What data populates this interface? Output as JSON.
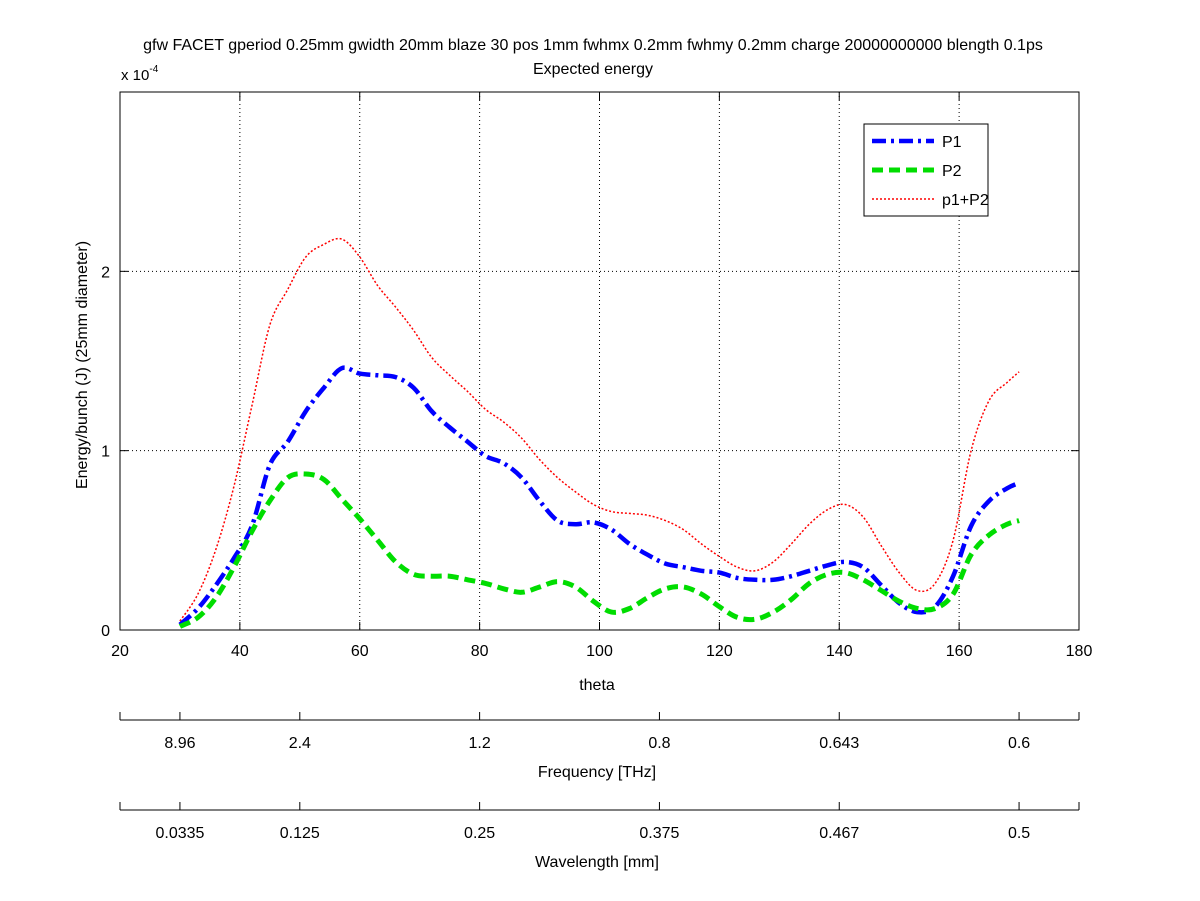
{
  "chart_data": {
    "type": "line",
    "title": "gfw FACET gperiod 0.25mm gwidth 20mm blaze 30 pos 1mm fwhmx 0.2mm fwhmy 0.2mm charge 20000000000 blength 0.1ps",
    "subtitle": "Expected energy",
    "xlabel": "theta",
    "ylabel": "Energy/bunch (J) (25mm diameter)",
    "y_exponent_base": "x 10",
    "y_exponent_power": "-4",
    "xlim": [
      20,
      180
    ],
    "ylim": [
      0,
      3
    ],
    "x_ticks": [
      20,
      40,
      60,
      80,
      100,
      120,
      140,
      160,
      180
    ],
    "x_tick_labels": [
      "20",
      "40",
      "60",
      "80",
      "100",
      "120",
      "140",
      "160",
      "180"
    ],
    "y_ticks": [
      0,
      1,
      2
    ],
    "y_tick_labels": [
      "0",
      "1",
      "2"
    ],
    "grid": true,
    "legend_position": "top-right",
    "x": [
      30,
      33,
      36,
      39,
      42,
      45,
      48,
      51,
      54,
      57,
      60,
      63,
      66,
      69,
      72,
      75,
      78,
      81,
      84,
      87,
      90,
      93,
      96,
      99,
      102,
      105,
      108,
      111,
      114,
      117,
      120,
      123,
      126,
      129,
      132,
      135,
      138,
      141,
      144,
      147,
      150,
      153,
      156,
      159,
      162,
      165,
      168,
      170
    ],
    "series": [
      {
        "name": "P1",
        "color": "#0000ff",
        "style": "dashdot",
        "values": [
          0.03,
          0.12,
          0.25,
          0.4,
          0.58,
          0.92,
          1.05,
          1.22,
          1.35,
          1.46,
          1.43,
          1.42,
          1.41,
          1.35,
          1.22,
          1.13,
          1.05,
          0.97,
          0.93,
          0.85,
          0.72,
          0.61,
          0.59,
          0.6,
          0.56,
          0.48,
          0.42,
          0.37,
          0.35,
          0.33,
          0.32,
          0.29,
          0.28,
          0.28,
          0.3,
          0.33,
          0.36,
          0.38,
          0.35,
          0.25,
          0.15,
          0.1,
          0.13,
          0.3,
          0.58,
          0.72,
          0.79,
          0.82
        ]
      },
      {
        "name": "P2",
        "color": "#00dd00",
        "style": "dashed",
        "values": [
          0.02,
          0.07,
          0.18,
          0.35,
          0.55,
          0.72,
          0.85,
          0.87,
          0.84,
          0.73,
          0.62,
          0.5,
          0.38,
          0.31,
          0.3,
          0.3,
          0.28,
          0.26,
          0.23,
          0.21,
          0.24,
          0.27,
          0.24,
          0.16,
          0.1,
          0.12,
          0.18,
          0.23,
          0.24,
          0.2,
          0.13,
          0.07,
          0.06,
          0.1,
          0.17,
          0.26,
          0.31,
          0.32,
          0.28,
          0.22,
          0.16,
          0.12,
          0.12,
          0.2,
          0.42,
          0.53,
          0.59,
          0.61
        ]
      },
      {
        "name": "p1+P2",
        "color": "#ff0000",
        "style": "dotted",
        "values": [
          0.05,
          0.2,
          0.45,
          0.8,
          1.25,
          1.7,
          1.9,
          2.08,
          2.15,
          2.18,
          2.08,
          1.92,
          1.8,
          1.67,
          1.52,
          1.42,
          1.33,
          1.23,
          1.16,
          1.07,
          0.95,
          0.85,
          0.77,
          0.7,
          0.66,
          0.65,
          0.64,
          0.61,
          0.56,
          0.48,
          0.41,
          0.35,
          0.33,
          0.38,
          0.48,
          0.59,
          0.67,
          0.7,
          0.63,
          0.47,
          0.32,
          0.22,
          0.26,
          0.5,
          1.0,
          1.28,
          1.38,
          1.44
        ]
      }
    ],
    "secondary_axes": [
      {
        "label": "Frequency [THz]",
        "ticks_at_theta": [
          30,
          50,
          80,
          110,
          140,
          170
        ],
        "tick_labels": [
          "8.96",
          "2.4",
          "1.2",
          "0.8",
          "0.643",
          "0.6"
        ]
      },
      {
        "label": "Wavelength [mm]",
        "ticks_at_theta": [
          30,
          50,
          80,
          110,
          140,
          170
        ],
        "tick_labels": [
          "0.0335",
          "0.125",
          "0.25",
          "0.375",
          "0.467",
          "0.5"
        ]
      }
    ]
  }
}
